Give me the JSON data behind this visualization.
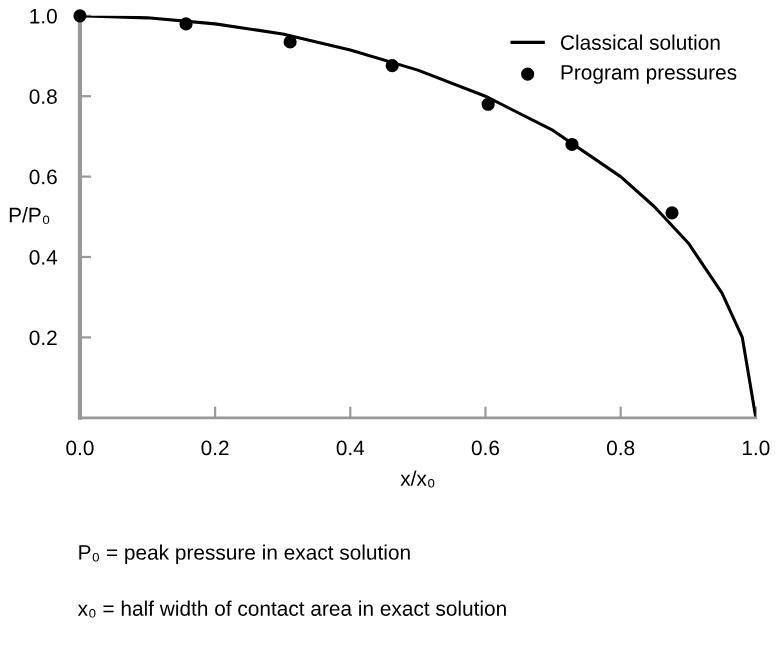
{
  "chart_data": {
    "type": "line",
    "xlabel": "x/x₀",
    "ylabel": "P/P₀",
    "series": [
      {
        "name": "Classical solution",
        "color": "#000000",
        "marker": "none",
        "x": [
          0,
          0.1,
          0.2,
          0.3,
          0.4,
          0.5,
          0.6,
          0.7,
          0.8,
          0.85,
          0.9,
          0.95,
          0.98,
          1.0
        ],
        "values": [
          1.0,
          0.995,
          0.98,
          0.955,
          0.915,
          0.865,
          0.8,
          0.715,
          0.6,
          0.525,
          0.435,
          0.31,
          0.2,
          0.0
        ]
      },
      {
        "name": "Program pressures",
        "type": "scatter",
        "color": "#000000",
        "marker": "circle",
        "x": [
          0,
          0.157,
          0.311,
          0.462,
          0.604,
          0.728,
          0.876
        ],
        "values": [
          1.0,
          0.98,
          0.935,
          0.876,
          0.78,
          0.68,
          0.51
        ]
      }
    ],
    "xlim": [
      0,
      1.0
    ],
    "ylim": [
      0,
      1.0
    ],
    "xticks": [
      {
        "value": 0,
        "label": "0.0"
      },
      0.2,
      0.4,
      0.6,
      0.8,
      {
        "value": 1.0,
        "label": "1.0"
      }
    ],
    "yticks": [
      0.2,
      0.4,
      0.6,
      0.8,
      {
        "value": 1.0,
        "label": "1.0"
      }
    ],
    "grid": false,
    "legend": "top right",
    "annotations": [
      "P₀ = peak pressure in exact solution",
      "x₀ = half width of contact area in exact solution"
    ]
  }
}
